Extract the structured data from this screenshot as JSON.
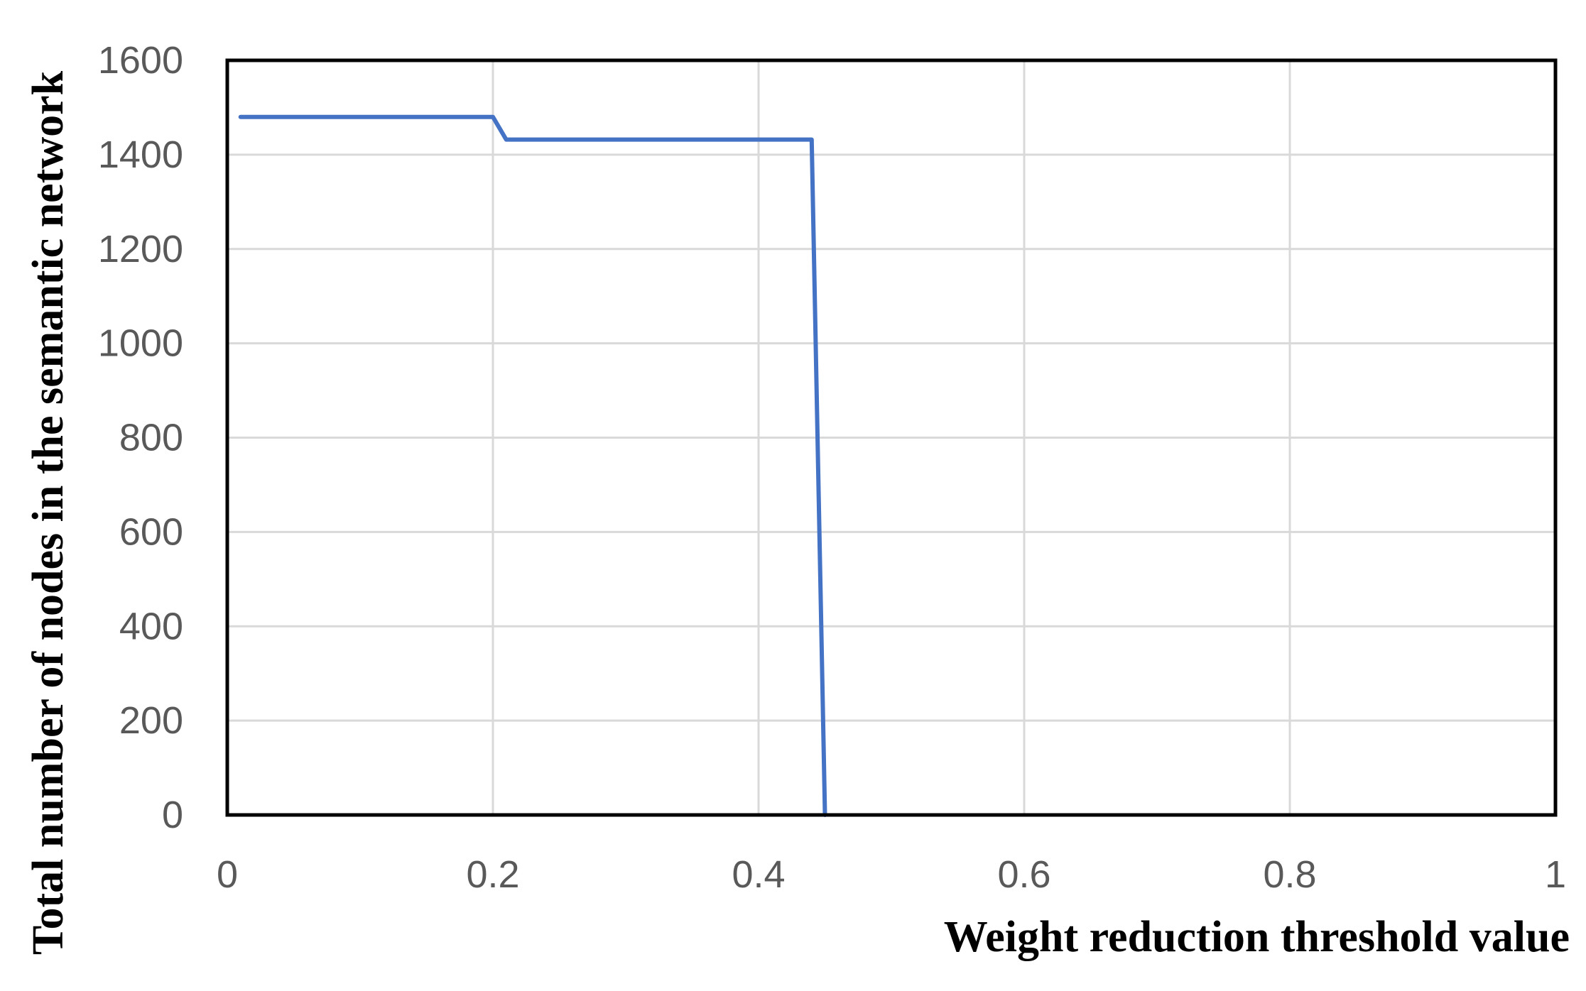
{
  "chart_data": {
    "type": "line",
    "title": "",
    "xlabel": "Weight reduction threshold value",
    "ylabel": "Total number of nodes in the semantic network",
    "xlim": [
      0,
      1
    ],
    "ylim": [
      0,
      1600
    ],
    "x_ticks": [
      0,
      0.2,
      0.4,
      0.6,
      0.8,
      1
    ],
    "x_tick_labels": [
      "0",
      "0.2",
      "0.4",
      "0.6",
      "0.8",
      "1"
    ],
    "y_ticks": [
      0,
      200,
      400,
      600,
      800,
      1000,
      1200,
      1400,
      1600
    ],
    "y_tick_labels": [
      "0",
      "200",
      "400",
      "600",
      "800",
      "1000",
      "1200",
      "1400",
      "1600"
    ],
    "grid": true,
    "legend": "none",
    "series": [
      {
        "color": "#4472c4",
        "x": [
          0.01,
          0.2,
          0.21,
          0.44,
          0.45
        ],
        "y": [
          1480,
          1480,
          1432,
          1432,
          0
        ]
      }
    ]
  }
}
